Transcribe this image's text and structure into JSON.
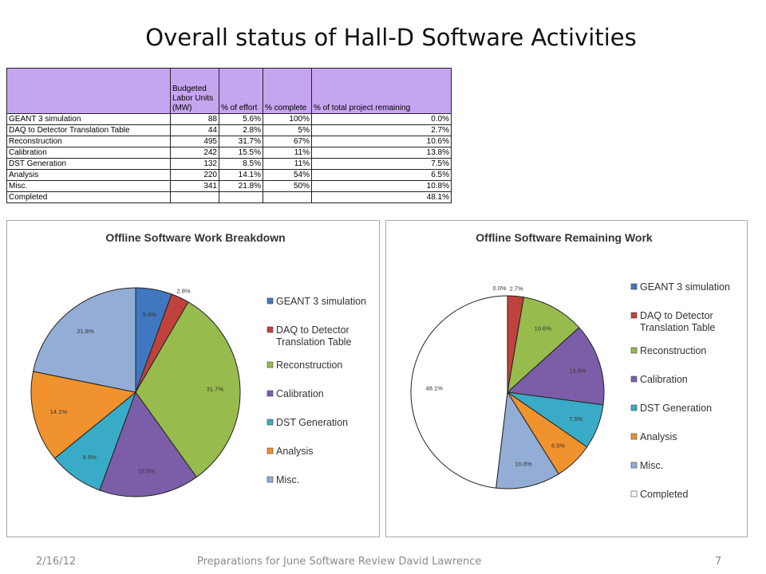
{
  "slide": {
    "title": "Overall status of Hall-D Software Activities"
  },
  "table": {
    "headers": [
      "",
      "Budgeted Labor Units (MW)",
      "% of effort",
      "% complete",
      "% of total project remaining"
    ],
    "rows": [
      [
        "GEANT 3 simulation",
        "88",
        "5.6%",
        "100%",
        "0.0%"
      ],
      [
        "DAQ to Detector Translation Table",
        "44",
        "2.8%",
        "5%",
        "2.7%"
      ],
      [
        "Reconstruction",
        "495",
        "31.7%",
        "67%",
        "10.6%"
      ],
      [
        "Calibration",
        "242",
        "15.5%",
        "11%",
        "13.8%"
      ],
      [
        "DST Generation",
        "132",
        "8.5%",
        "11%",
        "7.5%"
      ],
      [
        "Analysis",
        "220",
        "14.1%",
        "54%",
        "6.5%"
      ],
      [
        "Misc.",
        "341",
        "21.8%",
        "50%",
        "10.8%"
      ],
      [
        "Completed",
        "",
        "",
        "",
        "48.1%"
      ]
    ]
  },
  "chart_data": [
    {
      "type": "pie",
      "title": "Offline Software Work Breakdown",
      "labels": [
        "GEANT 3 simulation",
        "DAQ to Detector Translation Table",
        "Reconstruction",
        "Calibration",
        "DST Generation",
        "Analysis",
        "Misc."
      ],
      "legend_lines": [
        [
          "GEANT 3 simulation"
        ],
        [
          "DAQ to Detector",
          "Translation Table"
        ],
        [
          "Reconstruction"
        ],
        [
          "Calibration"
        ],
        [
          "DST Generation"
        ],
        [
          "Analysis"
        ],
        [
          "Misc."
        ]
      ],
      "values": [
        5.6,
        2.8,
        31.7,
        15.5,
        8.5,
        14.1,
        21.8
      ],
      "value_labels": [
        "5.6%",
        "2.8%",
        "31.7%",
        "15.5%",
        "8.5%",
        "14.1%",
        "21.8%"
      ],
      "colors": [
        "#3f77c0",
        "#c0423c",
        "#98bb4e",
        "#7b5ea7",
        "#3aabc6",
        "#f0922e",
        "#93add6"
      ],
      "legend_position": "right"
    },
    {
      "type": "pie",
      "title": "Offline Software Remaining Work",
      "labels": [
        "GEANT 3 simulation",
        "DAQ to Detector Translation Table",
        "Reconstruction",
        "Calibration",
        "DST Generation",
        "Analysis",
        "Misc.",
        "Completed"
      ],
      "legend_lines": [
        [
          "GEANT 3 simulation"
        ],
        [
          "DAQ to Detector",
          "Translation Table"
        ],
        [
          "Reconstruction"
        ],
        [
          "Calibration"
        ],
        [
          "DST Generation"
        ],
        [
          "Analysis"
        ],
        [
          "Misc."
        ],
        [
          "Completed"
        ]
      ],
      "values": [
        0.0,
        2.7,
        10.6,
        13.8,
        7.5,
        6.5,
        10.8,
        48.1
      ],
      "value_labels": [
        "0.0%",
        "2.7%",
        "10.6%",
        "13.8%",
        "7.5%",
        "6.5%",
        "10.8%",
        "48.1%"
      ],
      "colors": [
        "#3f77c0",
        "#c0423c",
        "#98bb4e",
        "#7b5ea7",
        "#3aabc6",
        "#f0922e",
        "#93add6",
        "#ffffff"
      ],
      "legend_position": "right"
    }
  ],
  "footer": {
    "date": "2/16/12",
    "center": "Preparations for June Software Review   David Lawrence",
    "page": "7"
  }
}
